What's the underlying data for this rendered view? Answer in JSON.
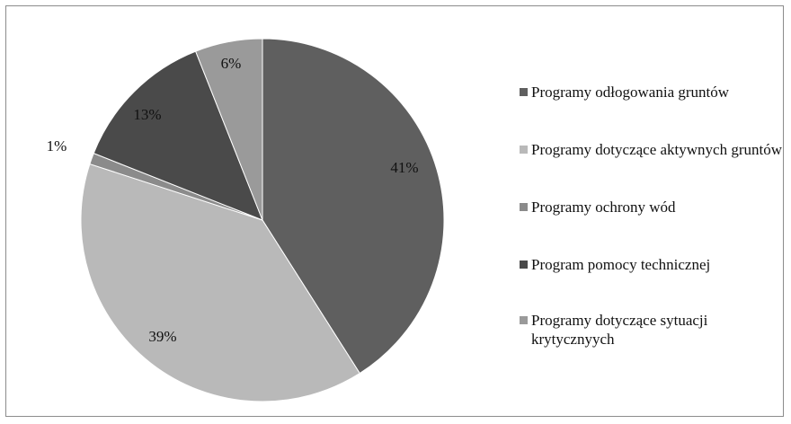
{
  "chart_data": {
    "type": "pie",
    "title": "",
    "legend_position": "right",
    "slices": [
      {
        "name": "Programy odłogowania gruntów",
        "value": 41,
        "label": "41%",
        "color": "#5f5f5f"
      },
      {
        "name": "Programy dotyczące aktywnych gruntów",
        "value": 39,
        "label": "39%",
        "color": "#b9b9b9"
      },
      {
        "name": "Programy ochrony wód",
        "value": 1,
        "label": "1%",
        "color": "#8b8b8b"
      },
      {
        "name": "Program pomocy technicznej",
        "value": 13,
        "label": "13%",
        "color": "#4a4a4a"
      },
      {
        "name": "Programy dotyczące sytuacji krytycznyych",
        "value": 6,
        "label": "6%",
        "color": "#9a9a9a"
      }
    ]
  }
}
